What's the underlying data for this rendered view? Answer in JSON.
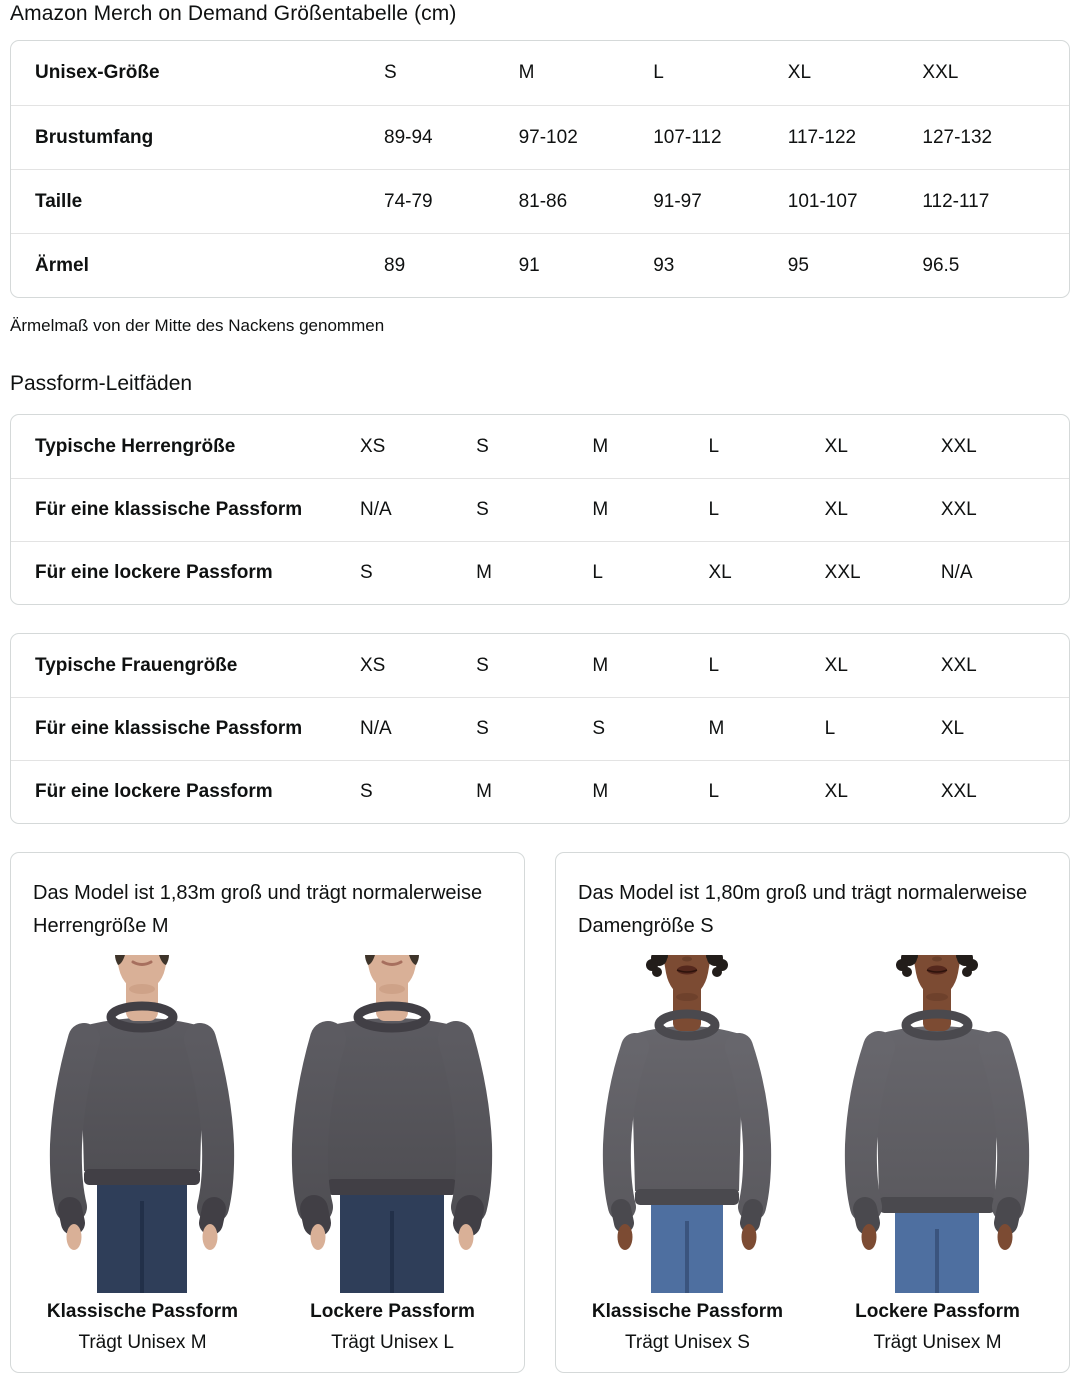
{
  "page": {
    "title": "Amazon Merch on Demand Größentabelle (cm)",
    "note": "Ärmelmaß von der Mitte des Nackens genommen",
    "fit_guides_heading": "Passform-Leitfäden"
  },
  "size_table": {
    "header": {
      "label": "Unisex-Größe",
      "values": [
        "S",
        "M",
        "L",
        "XL",
        "XXL"
      ]
    },
    "rows": [
      {
        "label": "Brustumfang",
        "values": [
          "89-94",
          "97-102",
          "107-112",
          "117-122",
          "127-132"
        ]
      },
      {
        "label": "Taille",
        "values": [
          "74-79",
          "81-86",
          "91-97",
          "101-107",
          "112-117"
        ]
      },
      {
        "label": "Ärmel",
        "values": [
          "89",
          "91",
          "93",
          "95",
          "96.5"
        ]
      }
    ]
  },
  "fit_tables": [
    {
      "rows": [
        {
          "label": "Typische Herrengröße",
          "values": [
            "XS",
            "S",
            "M",
            "L",
            "XL",
            "XXL"
          ]
        },
        {
          "label": "Für eine klassische Passform",
          "values": [
            "N/A",
            "S",
            "M",
            "L",
            "XL",
            "XXL"
          ]
        },
        {
          "label": "Für eine lockere Passform",
          "values": [
            "S",
            "M",
            "L",
            "XL",
            "XXL",
            "N/A"
          ]
        }
      ]
    },
    {
      "rows": [
        {
          "label": "Typische Frauengröße",
          "values": [
            "XS",
            "S",
            "M",
            "L",
            "XL",
            "XXL"
          ]
        },
        {
          "label": "Für eine klassische Passform",
          "values": [
            "N/A",
            "S",
            "S",
            "M",
            "L",
            "XL"
          ]
        },
        {
          "label": "Für eine lockere Passform",
          "values": [
            "S",
            "M",
            "M",
            "L",
            "XL",
            "XXL"
          ]
        }
      ]
    }
  ],
  "model_cards": [
    {
      "description": "Das Model ist 1,83m groß und trägt normalerweise Herrengröße M",
      "photos": [
        {
          "fit_label": "Klassische Passform",
          "size_label": "Trägt Unisex M",
          "figure": "male-classic"
        },
        {
          "fit_label": "Lockere Passform",
          "size_label": "Trägt Unisex L",
          "figure": "male-loose"
        }
      ]
    },
    {
      "description": "Das Model ist 1,80m groß und trägt normalerweise Damengröße S",
      "photos": [
        {
          "fit_label": "Klassische Passform",
          "size_label": "Trägt Unisex S",
          "figure": "female-classic"
        },
        {
          "fit_label": "Lockere Passform",
          "size_label": "Trägt Unisex M",
          "figure": "female-loose"
        }
      ]
    }
  ],
  "figures": {
    "male-classic": {
      "base": "male",
      "sh": 62,
      "bw": 58,
      "hem": 230,
      "sleeve": 32
    },
    "male-loose": {
      "base": "male",
      "sh": 68,
      "bw": 65,
      "hem": 240,
      "sleeve": 36
    },
    "female-classic": {
      "base": "female",
      "sh": 56,
      "bw": 52,
      "hem": 250,
      "sleeve": 28
    },
    "female-loose": {
      "base": "female",
      "sh": 62,
      "bw": 58,
      "hem": 258,
      "sleeve": 32
    }
  },
  "palettes": {
    "male": {
      "skin": "#d9b097",
      "skin_shadow": "#bd8e72",
      "hair": "#3e342a",
      "mouth": "#a76f5e",
      "shirt": "#504f54",
      "shirt_light": "#5c5b61",
      "shirt_dark": "#413f45",
      "jeans": "#2f3e59",
      "jeans_dark": "#223049"
    },
    "female": {
      "skin": "#7c4b33",
      "skin_shadow": "#5e3523",
      "hair": "#221d1a",
      "mouth": "#55281d",
      "shirt": "#5b5a5f",
      "shirt_light": "#67666c",
      "shirt_dark": "#4a494e",
      "jeans": "#4e6fa0",
      "jeans_dark": "#3a547e"
    }
  },
  "colors": {
    "text": "#0f1111",
    "card_border": "#d5d9d9",
    "row_divider": "#e3e3e3",
    "background": "#ffffff"
  }
}
